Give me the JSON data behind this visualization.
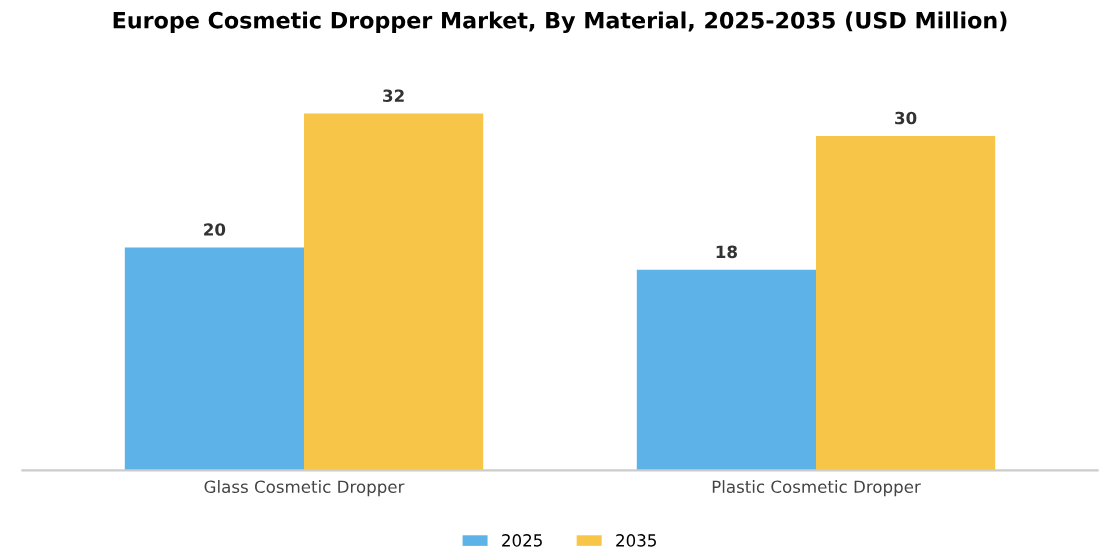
{
  "chart_data": {
    "type": "bar",
    "title": "Europe Cosmetic Dropper Market, By Material, 2025-2035 (USD Million)",
    "categories": [
      "Glass Cosmetic Dropper",
      "Plastic Cosmetic Dropper"
    ],
    "series": [
      {
        "name": "2025",
        "color": "#5db3e8",
        "values": [
          20,
          18
        ]
      },
      {
        "name": "2035",
        "color": "#f7c548",
        "values": [
          32,
          30
        ]
      }
    ],
    "data_labels": true,
    "legend": "bottom",
    "grid": false
  }
}
